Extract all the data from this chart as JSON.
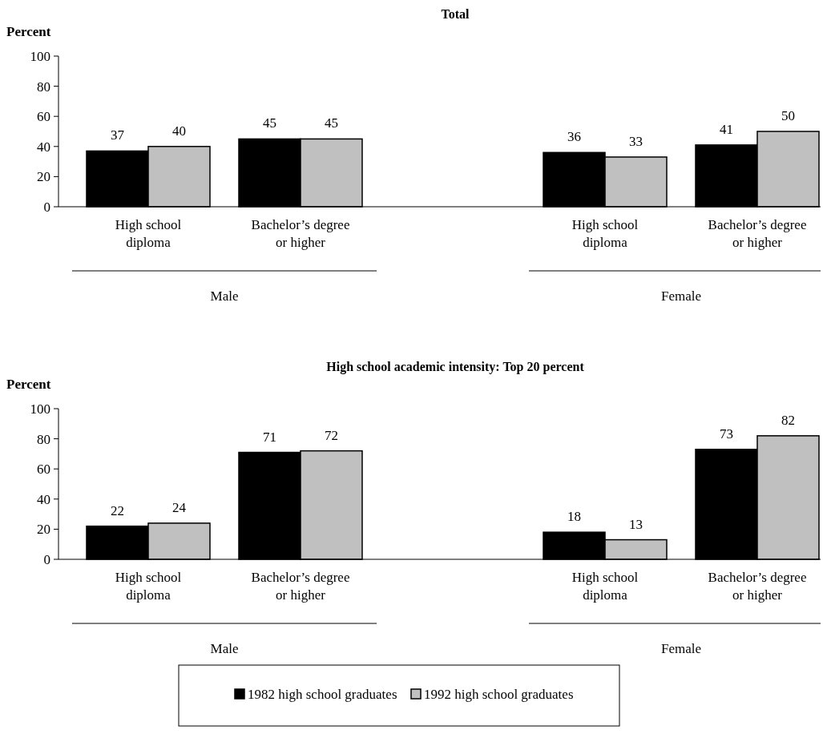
{
  "chart_data": [
    {
      "type": "bar",
      "title": "Total",
      "ylabel": "Percent",
      "categories": [
        "High school diploma",
        "Bachelor’s degree or higher",
        "High school diploma",
        "Bachelor’s degree or higher"
      ],
      "series": [
        {
          "color": "#000000",
          "values": [
            37,
            45,
            36,
            41
          ]
        },
        {
          "color": "#c0c0c0",
          "values": [
            40,
            45,
            33,
            50
          ]
        }
      ],
      "ylim": [
        0,
        100
      ],
      "yticks": [
        0,
        20,
        40,
        60,
        80,
        100
      ],
      "data_labels": true,
      "annotations": [
        "Male",
        "Female"
      ]
    },
    {
      "type": "bar",
      "title": "High school academic intensity: Top 20 percent",
      "ylabel": "Percent",
      "categories": [
        "High school diploma",
        "Bachelor’s degree or higher",
        "High school diploma",
        "Bachelor’s degree or higher"
      ],
      "series": [
        {
          "name": "1982 high school graduates",
          "color": "#000000",
          "values": [
            22,
            71,
            18,
            73
          ]
        },
        {
          "name": "1992 high school graduates",
          "color": "#c0c0c0",
          "values": [
            24,
            72,
            13,
            82
          ]
        }
      ],
      "ylim": [
        0,
        100
      ],
      "yticks": [
        0,
        20,
        40,
        60,
        80,
        100
      ],
      "data_labels": true,
      "annotations": [
        "Male",
        "Female"
      ],
      "legend": "bottom"
    }
  ]
}
